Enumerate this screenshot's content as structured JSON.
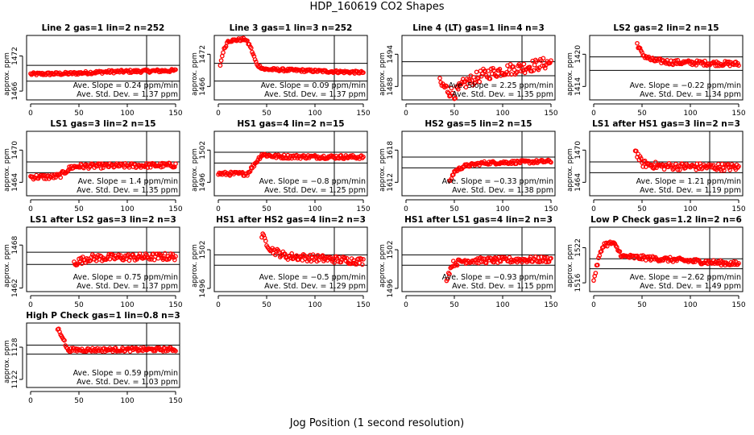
{
  "title": "HDP_160619  CO2 Shapes",
  "xlabel": "Jog Position (1 second resolution)",
  "ylabel": "approx. ppm",
  "slope_prefix": "Ave. Slope = ",
  "slope_unit": " ppm/min",
  "std_prefix": "Ave. Std. Dev. = ",
  "std_unit": " ppm",
  "colors": {
    "points": "#ff0000",
    "lines": "#000000"
  },
  "chart_data": [
    {
      "type": "scatter",
      "title": "Line 2 gas=1 lin=2 n=252",
      "xlim": [
        0,
        150
      ],
      "ylim": [
        1464.5,
        1475.5
      ],
      "yticks": [
        1466,
        1472
      ],
      "ref_lines": [
        1470.4,
        1467.7
      ],
      "vline": 120,
      "start": 0,
      "end": 150,
      "profile": [
        [
          0,
          1468.9
        ],
        [
          40,
          1469.0
        ],
        [
          80,
          1469.3
        ],
        [
          150,
          1469.5
        ]
      ],
      "noise": 0.25,
      "slope": "0.24",
      "std": "1.37",
      "grid": false
    },
    {
      "type": "scatter",
      "title": "Line 3 gas=1 lin=3 n=252",
      "xlim": [
        0,
        150
      ],
      "ylim": [
        1463.5,
        1475.5
      ],
      "yticks": [
        1466,
        1472
      ],
      "ref_lines": [
        1470.3,
        1467.0
      ],
      "vline": 120,
      "start": 2,
      "end": 150,
      "profile": [
        [
          2,
          1470.0
        ],
        [
          5,
          1472.5
        ],
        [
          10,
          1474.5
        ],
        [
          28,
          1474.8
        ],
        [
          33,
          1473.5
        ],
        [
          40,
          1470.0
        ],
        [
          48,
          1469.2
        ],
        [
          150,
          1468.6
        ]
      ],
      "noise": 0.25,
      "slope": "0.09",
      "std": "1.37",
      "grid": false
    },
    {
      "type": "scatter",
      "title": "Line 4 (LT) gas=1 lin=4 n=3",
      "xlim": [
        0,
        150
      ],
      "ylim": [
        1485.5,
        1497.5
      ],
      "yticks": [
        1488,
        1494
      ],
      "ref_lines": [
        1492.6,
        1490.0
      ],
      "vline": 120,
      "start": 35,
      "end": 150,
      "profile": [
        [
          35,
          1488.5
        ],
        [
          50,
          1486.5
        ],
        [
          60,
          1488.5
        ],
        [
          80,
          1490.2
        ],
        [
          100,
          1491.0
        ],
        [
          120,
          1491.5
        ],
        [
          150,
          1492.5
        ]
      ],
      "noise": 1.1,
      "slope": "2.25",
      "std": "1.35",
      "grid": false
    },
    {
      "type": "scatter",
      "title": "LS2 gas=2 lin=2 n=15",
      "xlim": [
        0,
        150
      ],
      "ylim": [
        1411.5,
        1423.5
      ],
      "yticks": [
        1414,
        1420
      ],
      "ref_lines": [
        1419.5,
        1417.0
      ],
      "vline": 120,
      "start": 45,
      "end": 150,
      "profile": [
        [
          45,
          1422.0
        ],
        [
          50,
          1420.0
        ],
        [
          60,
          1418.9
        ],
        [
          80,
          1418.5
        ],
        [
          150,
          1418.2
        ]
      ],
      "noise": 0.45,
      "slope": "−0.22",
      "std": "1.34",
      "grid": false
    },
    {
      "type": "scatter",
      "title": "LS1 gas=3 lin=2 n=15",
      "xlim": [
        0,
        150
      ],
      "ylim": [
        1461.5,
        1473.5
      ],
      "yticks": [
        1464,
        1470
      ],
      "ref_lines": [
        1467.8,
        1465.8
      ],
      "vline": 120,
      "start": 0,
      "end": 150,
      "profile": [
        [
          0,
          1465.0
        ],
        [
          20,
          1465.0
        ],
        [
          30,
          1465.2
        ],
        [
          42,
          1466.8
        ],
        [
          50,
          1467.0
        ],
        [
          150,
          1467.2
        ]
      ],
      "noise": 0.45,
      "slope": "1.4",
      "std": "1.35",
      "grid": false
    },
    {
      "type": "scatter",
      "title": "HS1 gas=4 lin=2 n=15",
      "xlim": [
        0,
        150
      ],
      "ylim": [
        1493.5,
        1505.5
      ],
      "yticks": [
        1496,
        1502
      ],
      "ref_lines": [
        1501.6,
        1499.6
      ],
      "vline": 120,
      "start": 0,
      "end": 150,
      "profile": [
        [
          0,
          1497.6
        ],
        [
          30,
          1497.6
        ],
        [
          38,
          1499.5
        ],
        [
          45,
          1501.2
        ],
        [
          60,
          1500.8
        ],
        [
          150,
          1500.7
        ]
      ],
      "noise": 0.35,
      "slope": "−0.8",
      "std": "1.25",
      "grid": false
    },
    {
      "type": "scatter",
      "title": "HS2 gas=5 lin=2 n=15",
      "xlim": [
        0,
        150
      ],
      "ylim": [
        1609.5,
        1621.5
      ],
      "yticks": [
        1612,
        1618
      ],
      "ref_lines": [
        1616.7,
        1614.7
      ],
      "vline": 120,
      "start": 45,
      "end": 150,
      "profile": [
        [
          45,
          1612.0
        ],
        [
          50,
          1614.0
        ],
        [
          60,
          1615.0
        ],
        [
          80,
          1615.6
        ],
        [
          150,
          1615.9
        ]
      ],
      "noise": 0.3,
      "slope": "−0.33",
      "std": "1.38",
      "grid": false
    },
    {
      "type": "scatter",
      "title": "LS1 after HS1 gas=3 lin=2 n=3",
      "xlim": [
        0,
        150
      ],
      "ylim": [
        1461.5,
        1473.5
      ],
      "yticks": [
        1464,
        1470
      ],
      "ref_lines": [
        1467.8,
        1465.8
      ],
      "vline": 120,
      "start": 43,
      "end": 150,
      "profile": [
        [
          43,
          1470.0
        ],
        [
          50,
          1467.5
        ],
        [
          70,
          1467.0
        ],
        [
          150,
          1466.8
        ]
      ],
      "noise": 0.65,
      "slope": "1.21",
      "std": "1.19",
      "grid": false
    },
    {
      "type": "scatter",
      "title": "LS1 after LS2 gas=3 lin=2 n=3",
      "xlim": [
        0,
        150
      ],
      "ylim": [
        1461.5,
        1470.5
      ],
      "yticks": [
        1462,
        1468
      ],
      "ref_lines": [
        1467.0,
        1465.3
      ],
      "vline": 120,
      "start": 45,
      "end": 150,
      "profile": [
        [
          45,
          1465.5
        ],
        [
          60,
          1466.2
        ],
        [
          150,
          1466.4
        ]
      ],
      "noise": 0.5,
      "slope": "0.75",
      "std": "1.37",
      "grid": false
    },
    {
      "type": "scatter",
      "title": "HS1 after HS2 gas=4 lin=2 n=3",
      "xlim": [
        0,
        150
      ],
      "ylim": [
        1495.5,
        1505.5
      ],
      "yticks": [
        1496,
        1502
      ],
      "ref_lines": [
        1501.2,
        1499.6
      ],
      "vline": 120,
      "start": 45,
      "end": 150,
      "profile": [
        [
          45,
          1504.2
        ],
        [
          55,
          1502.0
        ],
        [
          70,
          1501.0
        ],
        [
          150,
          1500.2
        ]
      ],
      "noise": 0.55,
      "slope": "−0.5",
      "std": "1.29",
      "grid": false
    },
    {
      "type": "scatter",
      "title": "HS1 after LS1 gas=4 lin=2 n=3",
      "xlim": [
        0,
        150
      ],
      "ylim": [
        1495.5,
        1505.5
      ],
      "yticks": [
        1496,
        1502
      ],
      "ref_lines": [
        1501.2,
        1499.6
      ],
      "vline": 120,
      "start": 42,
      "end": 150,
      "profile": [
        [
          42,
          1497.5
        ],
        [
          48,
          1499.8
        ],
        [
          60,
          1500.3
        ],
        [
          150,
          1500.5
        ]
      ],
      "noise": 0.45,
      "slope": "−0.93",
      "std": "1.15",
      "grid": false
    },
    {
      "type": "scatter",
      "title": "Low P Check gas=1.2 lin=2 n=6",
      "xlim": [
        0,
        150
      ],
      "ylim": [
        1514.5,
        1525.5
      ],
      "yticks": [
        1516,
        1522
      ],
      "ref_lines": [
        1520.1,
        1518.4
      ],
      "vline": 120,
      "start": 0,
      "end": 150,
      "profile": [
        [
          0,
          1516.5
        ],
        [
          5,
          1520.0
        ],
        [
          10,
          1522.5
        ],
        [
          20,
          1522.8
        ],
        [
          30,
          1520.5
        ],
        [
          150,
          1519.2
        ]
      ],
      "noise": 0.4,
      "slope": "−2.62",
      "std": "1.49",
      "grid": false
    },
    {
      "type": "scatter",
      "title": "High P Check gas=1 lin=0.8 n=3",
      "xlim": [
        0,
        150
      ],
      "ylim": [
        1120.5,
        1132.5
      ],
      "yticks": [
        1122,
        1128
      ],
      "ref_lines": [
        1128.4,
        1126.7
      ],
      "vline": 120,
      "start": 28,
      "end": 150,
      "profile": [
        [
          28,
          1131.5
        ],
        [
          33,
          1130.0
        ],
        [
          38,
          1127.5
        ],
        [
          45,
          1127.5
        ],
        [
          150,
          1127.6
        ]
      ],
      "noise": 0.35,
      "slope": "0.59",
      "std": "1.03",
      "grid": false
    }
  ]
}
